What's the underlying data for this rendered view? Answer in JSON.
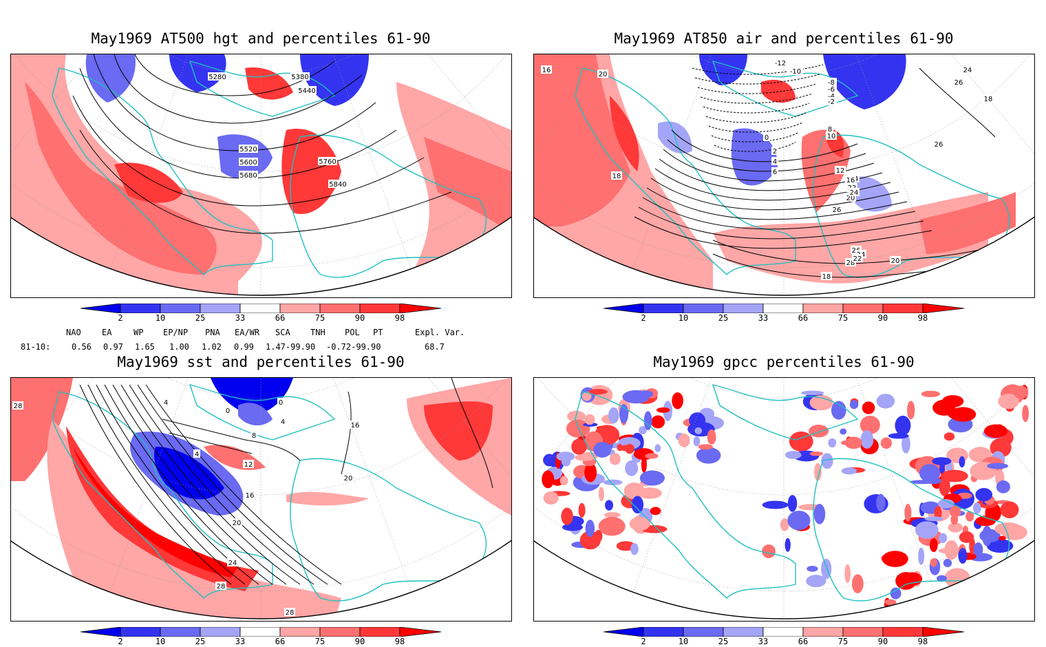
{
  "panels": [
    {
      "id": "p1",
      "title": "May1969 AT500 hgt and percentiles 61-90",
      "contour_labels": [
        "5280",
        "5380",
        "5440",
        "5520",
        "5600",
        "5680",
        "5760",
        "5840"
      ]
    },
    {
      "id": "p2",
      "title": "May1969 AT850 air and percentiles 61-90",
      "contour_labels": [
        "16",
        "20",
        "18",
        "-12",
        "-10",
        "-8",
        "-6",
        "-4",
        "-2",
        "0",
        "2",
        "4",
        "6",
        "8",
        "10",
        "12",
        "14",
        "16",
        "18",
        "20",
        "22",
        "24",
        "26",
        "28",
        "26",
        "24",
        "22",
        "20",
        "18",
        "26",
        "24",
        "26",
        "18"
      ]
    },
    {
      "id": "p3",
      "title": "May1969 sst and percentiles 61-90",
      "contour_labels": [
        "28",
        "4",
        "0",
        "4",
        "0",
        "8",
        "4",
        "12",
        "16",
        "20",
        "24",
        "28",
        "28",
        "16",
        "20"
      ]
    },
    {
      "id": "p4",
      "title": "May1969 gpcc percentiles 61-90",
      "contour_labels": []
    }
  ],
  "colorbar": {
    "labels": [
      "2",
      "10",
      "25",
      "33",
      "66",
      "75",
      "90",
      "98"
    ],
    "colors": {
      "b98": "#0000ee",
      "b90": "#3434f0",
      "b75": "#6a6af2",
      "b66": "#a5a5f8",
      "white": "#ffffff",
      "r66": "#ffa6a6",
      "r75": "#ff7070",
      "r90": "#ff3838",
      "r98": "#ff0000"
    }
  },
  "indices": {
    "headers": [
      "NAO",
      "EA",
      "WP",
      "EP/NP",
      "PNA",
      "EA/WR",
      "SCA",
      "TNH",
      "POL",
      "PT",
      "Expl. Var."
    ],
    "row_label": "81-10:",
    "values": [
      "0.56",
      "0.97",
      "1.65",
      "1.00",
      "1.02",
      "0.99",
      "1.47-99.90",
      "-0.72-99.90",
      "68.7"
    ]
  },
  "colors": {
    "coast": "#20c0c0",
    "contour": "#000000",
    "grid": "#9a9a9a"
  }
}
